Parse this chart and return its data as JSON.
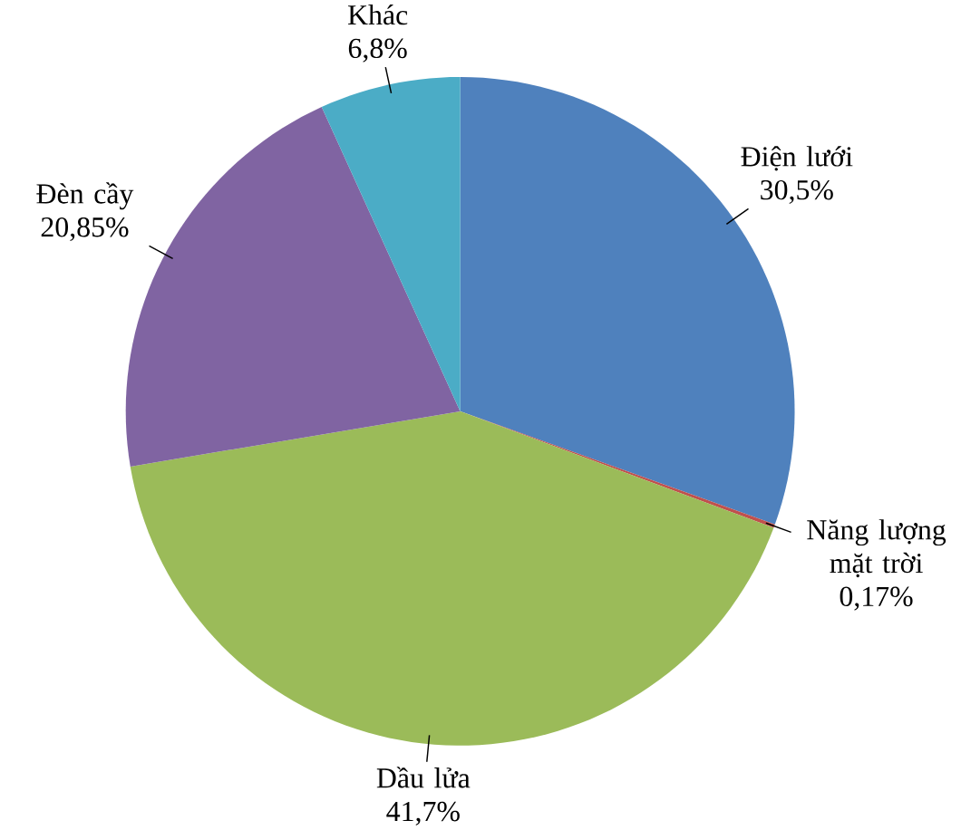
{
  "chart_data": {
    "type": "pie",
    "categories": [
      "Điện lưới",
      "Năng lượng mặt trời",
      "Dầu lửa",
      "Đèn cầy",
      "Khác"
    ],
    "values": [
      30.5,
      0.17,
      41.7,
      20.85,
      6.8
    ],
    "value_labels": [
      "30,5%",
      "0,17%",
      "41,7%",
      "20,85%",
      "6,8%"
    ],
    "colors": [
      "#4f81bd",
      "#c0504d",
      "#9bbb59",
      "#8064a2",
      "#4bacc6"
    ]
  }
}
